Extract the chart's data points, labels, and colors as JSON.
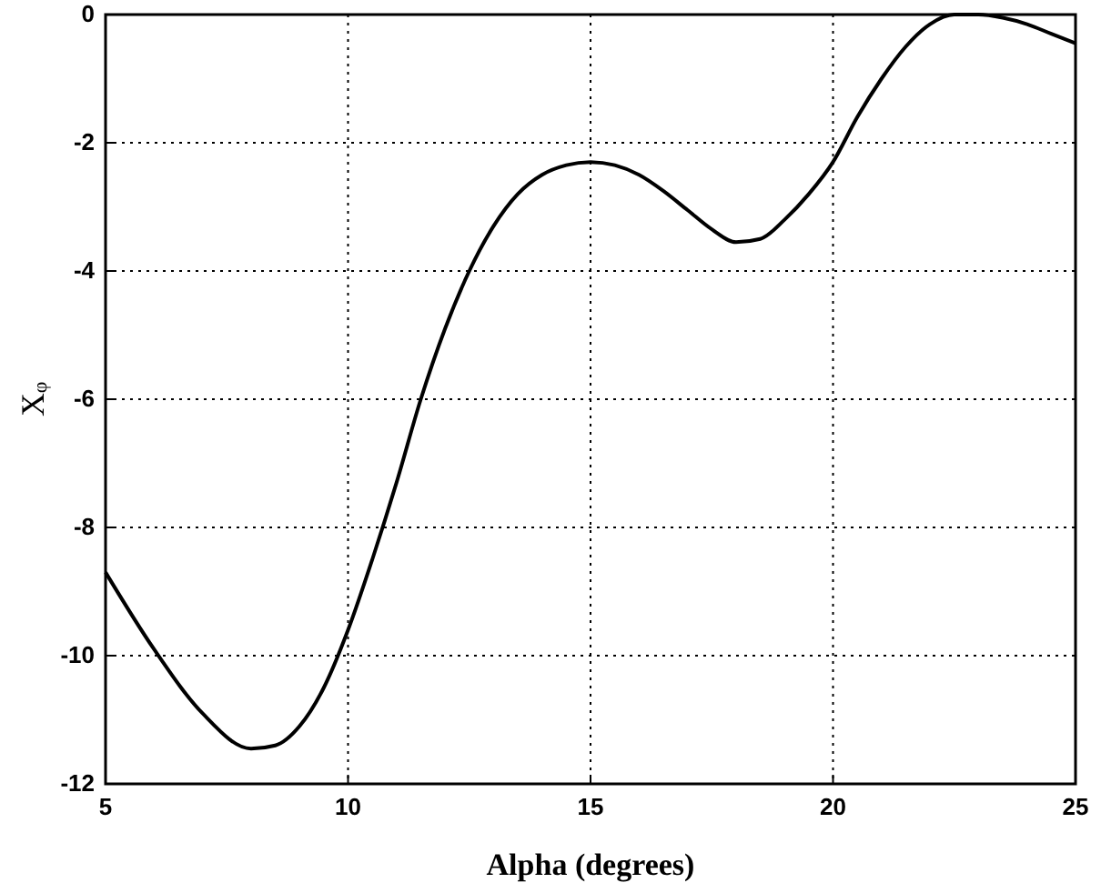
{
  "chart_data": {
    "type": "line",
    "xlabel": "Alpha (degrees)",
    "ylabel": "Xᵩ",
    "x": [
      5,
      6,
      7,
      8,
      8.5,
      9,
      9.5,
      10,
      10.5,
      11,
      11.5,
      12,
      12.5,
      13,
      13.5,
      14,
      14.5,
      15,
      15.5,
      16,
      16.5,
      17,
      17.5,
      18,
      18.5,
      19,
      19.5,
      20,
      20.5,
      21,
      21.5,
      22,
      22.5,
      23,
      23.5,
      24,
      24.5,
      25
    ],
    "series": [
      {
        "color": "#000000",
        "values": [
          -8.7,
          -9.9,
          -10.9,
          -11.45,
          -11.4,
          -11.1,
          -10.5,
          -9.6,
          -8.5,
          -7.3,
          -6.0,
          -4.9,
          -4.0,
          -3.3,
          -2.8,
          -2.5,
          -2.35,
          -2.3,
          -2.35,
          -2.5,
          -2.75,
          -3.05,
          -3.35,
          -3.55,
          -3.5,
          -3.2,
          -2.8,
          -2.3,
          -1.6,
          -1.0,
          -0.5,
          -0.15,
          0,
          0,
          -0.05,
          -0.15,
          -0.3,
          -0.45
        ]
      }
    ],
    "xlim": [
      5,
      25
    ],
    "xticks": [
      5,
      10,
      15,
      20,
      25
    ],
    "ylim": [
      -12,
      0
    ],
    "yticks": [
      -12,
      -10,
      -8,
      -6,
      -4,
      -2,
      0
    ],
    "grid": true,
    "marker": "none",
    "line_style": "solid"
  }
}
